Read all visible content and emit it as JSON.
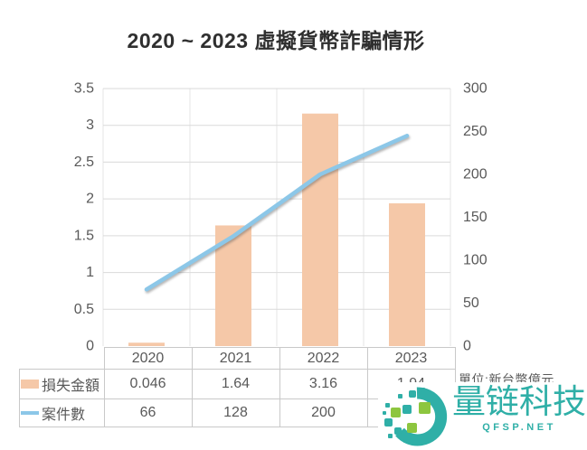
{
  "title": "2020 ~ 2023 虛擬貨幣詐騙情形",
  "unit_note": "單位:新台幣億元",
  "chart_data": {
    "type": "combo-bar-line",
    "categories": [
      "2020",
      "2021",
      "2022",
      "2023"
    ],
    "series": [
      {
        "name": "損失金額",
        "type": "bar",
        "axis": "left",
        "values": [
          0.046,
          1.64,
          3.16,
          1.94
        ]
      },
      {
        "name": "案件數",
        "type": "line",
        "axis": "right",
        "values": [
          66,
          128,
          200,
          245
        ]
      }
    ],
    "left_axis": {
      "min": 0,
      "max": 3.5,
      "step": 0.5,
      "ticks": [
        "0",
        "0.5",
        "1",
        "1.5",
        "2",
        "2.5",
        "3",
        "3.5"
      ]
    },
    "right_axis": {
      "min": 0,
      "max": 300,
      "step": 50,
      "ticks": [
        "0",
        "50",
        "100",
        "150",
        "200",
        "250",
        "300"
      ]
    },
    "grid": true,
    "legend_position": "table-row-labels",
    "colors": {
      "bar": "#F5C8A8",
      "line": "#8CC7E8",
      "h_gridline": "#DADADA",
      "v_gridline": "#E4E4E4",
      "axis_text": "#595959"
    }
  },
  "table": {
    "years": [
      "2020",
      "2021",
      "2022",
      "2023"
    ],
    "rows": [
      {
        "label": "損失金額",
        "values": [
          "0.046",
          "1.64",
          "3.16",
          "1.94"
        ]
      },
      {
        "label": "案件數",
        "values": [
          "66",
          "128",
          "200",
          ""
        ]
      }
    ]
  },
  "watermark": {
    "brand": "量链科技",
    "domain": "QFSP.NET",
    "logo": "pixel-blocks-circle-logo",
    "teal": "#2FAFA7",
    "green": "#8DC63F"
  }
}
